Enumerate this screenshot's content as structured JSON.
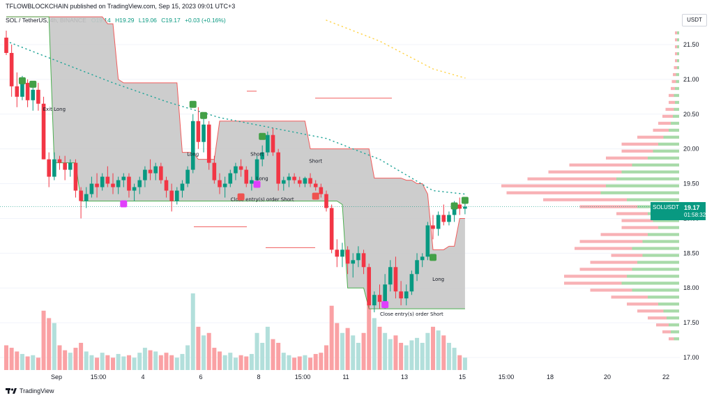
{
  "header": "TFLOWBLOCKCHAIN published on TradingView.com, Sep 15, 2023 09:01 UTC+3",
  "symbol_line": {
    "symbol": "SOL / TetherUS, 4h, BINANCE",
    "open": "O19.14",
    "high": "H19.29",
    "low": "L19.06",
    "close": "C19.17",
    "change": "+0.03 (+0.16%)"
  },
  "currency": "USDT",
  "price_badge": {
    "symbol": "SOLUSDT",
    "price": "19.17",
    "countdown": "01:58:32"
  },
  "footer": {
    "brand": "TradingView"
  },
  "colors": {
    "up": "#089981",
    "down": "#f23645",
    "band": "#c8c8c8",
    "band_edge": "#f05b5b",
    "vol_up": "#b2dfdb",
    "vol_down": "#faa1a4",
    "ema_teal": "#26a69a",
    "ema_yellow": "#ffd54f"
  },
  "chart_data": {
    "type": "candlestick",
    "ylim": [
      16.8,
      21.8
    ],
    "y_ticks": [
      "21.50",
      "21.00",
      "20.50",
      "20.00",
      "19.50",
      "19.00",
      "18.50",
      "18.00",
      "17.50",
      "17.00"
    ],
    "x_ticks": [
      "Sep",
      "15:00",
      "4",
      "6",
      "8",
      "15:00",
      "11",
      "13",
      "15",
      "15:00",
      "18",
      "20",
      "22"
    ],
    "last_price": 19.17,
    "candles": [
      [
        21.6,
        21.7,
        21.35,
        21.38
      ],
      [
        21.38,
        21.5,
        20.75,
        20.9
      ],
      [
        20.9,
        21.1,
        20.6,
        20.75
      ],
      [
        20.75,
        21.05,
        20.7,
        20.95
      ],
      [
        20.95,
        21.0,
        20.6,
        20.7
      ],
      [
        20.7,
        20.95,
        20.55,
        20.85
      ],
      [
        20.85,
        20.95,
        20.55,
        20.65
      ],
      [
        20.65,
        20.75,
        19.85,
        19.85
      ],
      [
        19.85,
        19.95,
        19.45,
        19.6
      ],
      [
        19.6,
        19.95,
        19.55,
        19.85
      ],
      [
        19.85,
        19.9,
        19.7,
        19.8
      ],
      [
        19.8,
        19.9,
        19.55,
        19.7
      ],
      [
        19.7,
        19.85,
        19.6,
        19.8
      ],
      [
        19.8,
        19.85,
        19.3,
        19.4
      ],
      [
        19.4,
        19.45,
        19.0,
        19.25
      ],
      [
        19.25,
        19.45,
        19.15,
        19.35
      ],
      [
        19.35,
        19.6,
        19.3,
        19.5
      ],
      [
        19.5,
        19.65,
        19.3,
        19.45
      ],
      [
        19.45,
        19.65,
        19.4,
        19.6
      ],
      [
        19.6,
        19.75,
        19.45,
        19.5
      ],
      [
        19.5,
        19.65,
        19.35,
        19.45
      ],
      [
        19.45,
        19.6,
        19.35,
        19.55
      ],
      [
        19.55,
        19.65,
        19.45,
        19.6
      ],
      [
        19.6,
        19.65,
        19.3,
        19.4
      ],
      [
        19.4,
        19.5,
        19.25,
        19.45
      ],
      [
        19.45,
        19.6,
        19.35,
        19.55
      ],
      [
        19.55,
        19.75,
        19.45,
        19.7
      ],
      [
        19.7,
        19.85,
        19.55,
        19.65
      ],
      [
        19.65,
        19.8,
        19.55,
        19.75
      ],
      [
        19.75,
        19.8,
        19.5,
        19.55
      ],
      [
        19.55,
        19.6,
        19.3,
        19.4
      ],
      [
        19.4,
        19.5,
        19.1,
        19.25
      ],
      [
        19.25,
        19.45,
        19.2,
        19.4
      ],
      [
        19.4,
        19.55,
        19.3,
        19.5
      ],
      [
        19.5,
        19.75,
        19.45,
        19.7
      ],
      [
        19.7,
        20.5,
        19.65,
        20.4
      ],
      [
        20.4,
        20.6,
        20.0,
        20.1
      ],
      [
        20.1,
        20.45,
        19.95,
        20.35
      ],
      [
        20.35,
        20.4,
        19.7,
        19.8
      ],
      [
        19.8,
        19.9,
        19.5,
        19.55
      ],
      [
        19.55,
        19.65,
        19.35,
        19.45
      ],
      [
        19.45,
        19.6,
        19.3,
        19.5
      ],
      [
        19.5,
        19.7,
        19.45,
        19.65
      ],
      [
        19.65,
        19.8,
        19.55,
        19.75
      ],
      [
        19.75,
        19.85,
        19.6,
        19.7
      ],
      [
        19.7,
        19.75,
        19.45,
        19.5
      ],
      [
        19.5,
        19.6,
        19.4,
        19.55
      ],
      [
        19.55,
        19.9,
        19.5,
        19.85
      ],
      [
        19.85,
        20.05,
        19.75,
        19.95
      ],
      [
        19.95,
        20.25,
        19.9,
        20.2
      ],
      [
        20.2,
        20.3,
        19.9,
        19.95
      ],
      [
        19.95,
        20.0,
        19.4,
        19.5
      ],
      [
        19.5,
        19.6,
        19.4,
        19.55
      ],
      [
        19.55,
        19.65,
        19.45,
        19.6
      ],
      [
        19.6,
        19.65,
        19.5,
        19.55
      ],
      [
        19.55,
        19.6,
        19.45,
        19.5
      ],
      [
        19.5,
        19.6,
        19.45,
        19.58
      ],
      [
        19.58,
        19.65,
        19.45,
        19.5
      ],
      [
        19.5,
        19.55,
        19.4,
        19.45
      ],
      [
        19.45,
        19.5,
        19.3,
        19.35
      ],
      [
        19.35,
        19.4,
        19.1,
        19.15
      ],
      [
        19.15,
        19.2,
        18.5,
        18.55
      ],
      [
        18.55,
        18.7,
        18.3,
        18.45
      ],
      [
        18.45,
        18.65,
        18.3,
        18.55
      ],
      [
        18.55,
        18.6,
        18.2,
        18.35
      ],
      [
        18.35,
        18.5,
        18.15,
        18.4
      ],
      [
        18.4,
        18.6,
        18.3,
        18.5
      ],
      [
        18.5,
        18.55,
        18.2,
        18.3
      ],
      [
        18.3,
        18.35,
        17.7,
        17.75
      ],
      [
        17.75,
        17.95,
        17.65,
        17.9
      ],
      [
        17.9,
        18.05,
        17.7,
        17.8
      ],
      [
        17.8,
        18.2,
        17.7,
        18.05
      ],
      [
        18.05,
        18.4,
        17.95,
        18.3
      ],
      [
        18.3,
        18.45,
        17.85,
        17.95
      ],
      [
        17.95,
        18.1,
        17.75,
        17.85
      ],
      [
        17.85,
        18.05,
        17.75,
        17.95
      ],
      [
        17.95,
        18.25,
        17.9,
        18.2
      ],
      [
        18.2,
        18.5,
        18.1,
        18.4
      ],
      [
        18.4,
        18.5,
        18.3,
        18.45
      ],
      [
        18.45,
        18.95,
        18.4,
        18.9
      ],
      [
        18.9,
        19.05,
        18.7,
        18.85
      ],
      [
        18.85,
        19.1,
        18.75,
        19.05
      ],
      [
        19.05,
        19.2,
        18.9,
        18.95
      ],
      [
        18.95,
        19.1,
        18.9,
        19.05
      ],
      [
        19.05,
        19.25,
        18.95,
        19.2
      ],
      [
        19.2,
        19.3,
        19.05,
        19.14
      ],
      [
        19.14,
        19.29,
        19.06,
        19.17
      ]
    ],
    "volume": [
      0.2,
      0.18,
      0.15,
      0.13,
      0.11,
      0.12,
      0.1,
      0.48,
      0.42,
      0.38,
      0.2,
      0.16,
      0.14,
      0.18,
      0.22,
      0.15,
      0.12,
      0.1,
      0.14,
      0.12,
      0.1,
      0.13,
      0.11,
      0.12,
      0.1,
      0.14,
      0.18,
      0.16,
      0.15,
      0.12,
      0.14,
      0.12,
      0.1,
      0.13,
      0.2,
      0.62,
      0.35,
      0.28,
      0.3,
      0.18,
      0.15,
      0.12,
      0.14,
      0.1,
      0.12,
      0.11,
      0.13,
      0.3,
      0.22,
      0.35,
      0.25,
      0.22,
      0.14,
      0.12,
      0.1,
      0.11,
      0.12,
      0.1,
      0.13,
      0.14,
      0.2,
      0.52,
      0.38,
      0.3,
      0.34,
      0.28,
      0.22,
      0.3,
      0.55,
      0.42,
      0.35,
      0.3,
      0.25,
      0.28,
      0.22,
      0.2,
      0.24,
      0.26,
      0.22,
      0.3,
      0.35,
      0.32,
      0.28,
      0.22,
      0.18,
      0.12,
      0.1
    ],
    "band_top": [
      {
        "i": 0,
        "p": 21.9
      },
      {
        "i": 17,
        "p": 21.9
      },
      {
        "i": 18,
        "p": 21.8
      },
      {
        "i": 20,
        "p": 21.0
      },
      {
        "i": 21,
        "p": 20.95
      },
      {
        "i": 30,
        "p": 20.95
      },
      {
        "i": 32,
        "p": 19.95
      },
      {
        "i": 35,
        "p": 19.85
      },
      {
        "i": 38,
        "p": 19.85
      },
      {
        "i": 39,
        "p": 20.4
      },
      {
        "i": 54,
        "p": 20.4
      },
      {
        "i": 56,
        "p": 20.0
      },
      {
        "i": 60,
        "p": 20.0
      },
      {
        "i": 62,
        "p": 20.0
      },
      {
        "i": 66,
        "p": 20.0
      },
      {
        "i": 68,
        "p": 19.58
      },
      {
        "i": 74,
        "p": 19.55
      },
      {
        "i": 76,
        "p": 19.5
      },
      {
        "i": 78,
        "p": 19.35
      },
      {
        "i": 79,
        "p": 18.55
      },
      {
        "i": 82,
        "p": 18.6
      },
      {
        "i": 84,
        "p": 19.0
      },
      {
        "i": 86,
        "p": 19.2
      }
    ],
    "band_bottom": [
      {
        "i": 0,
        "p": 21.9
      },
      {
        "i": 7,
        "p": 21.9
      },
      {
        "i": 8,
        "p": 19.8
      },
      {
        "i": 12,
        "p": 19.8
      },
      {
        "i": 13,
        "p": 19.25
      },
      {
        "i": 35,
        "p": 19.25
      },
      {
        "i": 36,
        "p": 19.25
      },
      {
        "i": 60,
        "p": 19.25
      },
      {
        "i": 62,
        "p": 19.2
      },
      {
        "i": 63,
        "p": 18.0
      },
      {
        "i": 67,
        "p": 17.7
      },
      {
        "i": 86,
        "p": 17.55
      }
    ],
    "ema_teal": [
      [
        0,
        21.55
      ],
      [
        10,
        21.25
      ],
      [
        20,
        20.95
      ],
      [
        30,
        20.68
      ],
      [
        40,
        20.45
      ],
      [
        50,
        20.3
      ],
      [
        60,
        20.15
      ],
      [
        70,
        19.85
      ],
      [
        80,
        19.4
      ],
      [
        86,
        19.35
      ]
    ],
    "ema_yellow": [
      [
        60,
        21.85
      ],
      [
        70,
        21.55
      ],
      [
        80,
        21.15
      ],
      [
        86,
        21.02
      ]
    ],
    "signals": [
      {
        "i": 9,
        "text": "Exit Long",
        "price": 20.55,
        "kind": "label"
      },
      {
        "i": 35,
        "text": "Long",
        "price": 19.9,
        "kind": "label"
      },
      {
        "i": 47,
        "text": "Short",
        "price": 19.9,
        "kind": "label"
      },
      {
        "i": 48,
        "text": "Long",
        "price": 19.55,
        "kind": "label"
      },
      {
        "i": 58,
        "text": "Short",
        "price": 19.8,
        "kind": "label"
      },
      {
        "i": 48,
        "text": "Close entry(s) order Short",
        "price": 19.25,
        "kind": "label"
      },
      {
        "i": 81,
        "text": "Long",
        "price": 18.1,
        "kind": "label"
      },
      {
        "i": 76,
        "text": "Close entry(s) order Short",
        "price": 17.6,
        "kind": "label"
      }
    ],
    "volume_profile": {
      "min": 17.25,
      "step": 0.1,
      "up": [
        0.05,
        0.08,
        0.1,
        0.12,
        0.15,
        0.2,
        0.3,
        0.45,
        0.55,
        0.5,
        0.45,
        0.4,
        0.35,
        0.45,
        0.35,
        0.3,
        0.2,
        0.25,
        0.3,
        0.4,
        0.5,
        0.75,
        0.7,
        0.6,
        0.55,
        0.45,
        0.3,
        0.25,
        0.2,
        0.15,
        0.1,
        0.08,
        0.06,
        0.05,
        0.04,
        0.05,
        0.04,
        0.03,
        0.03,
        0.02,
        0.02,
        0.02,
        0.02,
        0.02,
        0.02
      ],
      "down": [
        0.05,
        0.08,
        0.12,
        0.18,
        0.25,
        0.3,
        0.35,
        0.4,
        0.55,
        0.6,
        0.5,
        0.45,
        0.3,
        0.55,
        0.6,
        0.45,
        0.35,
        0.3,
        0.3,
        0.55,
        0.8,
        0.9,
        1.0,
        0.85,
        0.7,
        0.6,
        0.4,
        0.3,
        0.35,
        0.25,
        0.15,
        0.12,
        0.1,
        0.08,
        0.06,
        0.05,
        0.04,
        0.04,
        0.03,
        0.03,
        0.02,
        0.02,
        0.02,
        0.02,
        0.02
      ]
    }
  }
}
